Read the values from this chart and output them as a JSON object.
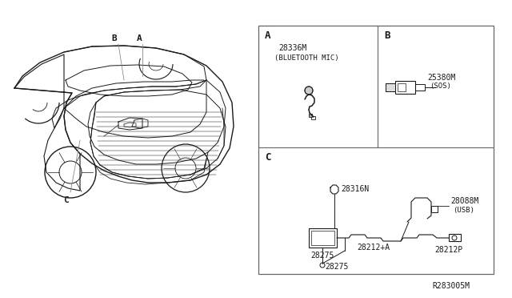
{
  "background_color": "#ffffff",
  "diagram_ref": "R283005M",
  "line_color": "#1a1a1a",
  "text_color": "#1a1a1a",
  "font_size": 7.5,
  "border_color": "#555555",
  "parts_A": {
    "number": "28336M",
    "name": "(BLUETOOTH MIC)"
  },
  "parts_B": {
    "number": "25380M",
    "name": "(SOS)"
  },
  "parts_C_numbers": [
    "28316N",
    "28275",
    "28212+A",
    "28212P",
    "28088M"
  ],
  "parts_C_names": [
    "",
    "",
    "",
    "",
    "(USB)"
  ]
}
